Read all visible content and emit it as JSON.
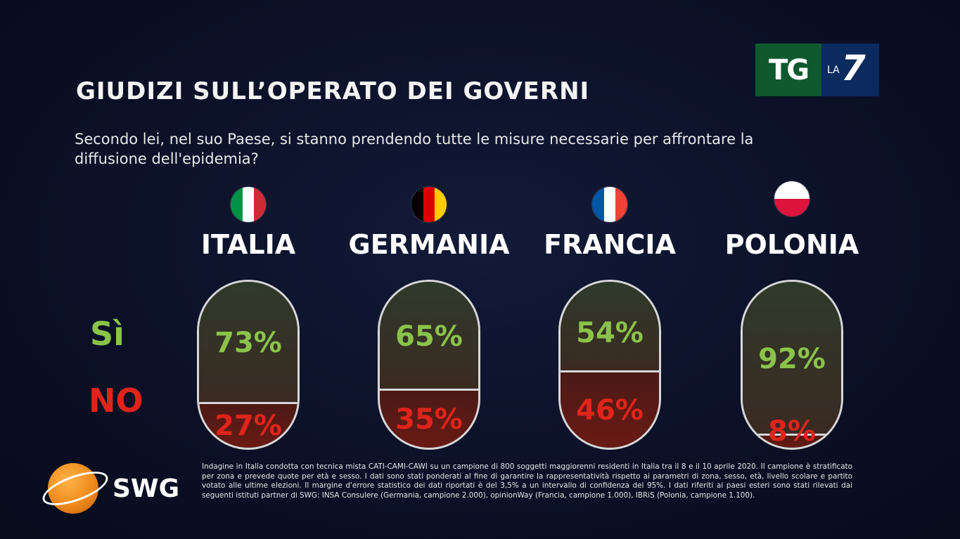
{
  "title": "GIUDIZI SULL’OPERATO DEI GOVERNI",
  "question": "Secondo lei, nel suo Paese, si stanno prendendo tutte le misure necessarie per affrontare la diffusione dell'epidemia?",
  "logo": {
    "tg": "TG",
    "la": "LA",
    "seven": "7"
  },
  "row_labels": {
    "yes": "Sì",
    "no": "NO"
  },
  "colors": {
    "yes": "#8bc34a",
    "no": "#e0241b"
  },
  "chart_data": {
    "type": "bar",
    "title": "GIUDIZI SULL’OPERATO DEI GOVERNI",
    "categories": [
      "ITALIA",
      "GERMANIA",
      "FRANCIA",
      "POLONIA"
    ],
    "series": [
      {
        "name": "Sì",
        "values": [
          73,
          65,
          54,
          92
        ],
        "labels": [
          "73%",
          "65%",
          "54%",
          "92%"
        ]
      },
      {
        "name": "NO",
        "values": [
          27,
          35,
          46,
          8
        ],
        "labels": [
          "27%",
          "35%",
          "46%",
          "8%"
        ]
      }
    ],
    "stacked": true,
    "unit": "%",
    "flags": [
      [
        "#009246",
        "#ffffff",
        "#ce2b37"
      ],
      [
        "#000000",
        "#dd0000",
        "#ffce00"
      ],
      [
        "#0055a4",
        "#ffffff",
        "#ef4135"
      ],
      [
        "#ffffff",
        "#dc143c"
      ]
    ]
  },
  "brand": {
    "swg": "SWG"
  },
  "note": "Indagine in Italia condotta con tecnica mista CATI-CAMI-CAWI su un campione di 800 soggetti maggiorenni residenti in Italia tra il 8 e il 10 aprile 2020. Il campione è stratificato per zona e prevede quote per età e sesso. I dati sono stati ponderati al fine di garantire la rappresentatività rispetto ai parametri di zona, sesso, età, livello scolare e partito votato alle ultime elezioni. Il margine d'errore statistico dei dati riportati è del 3,5% a un intervallo di confidenza del 95%. I dati riferiti ai paesi esteri sono stati rilevati dai seguenti istituti partner di SWG: INSA Consulere (Germania, campione 2.000), opinionWay (Francia, campione 1.000), IBRiS (Polonia, campione 1.100)."
}
